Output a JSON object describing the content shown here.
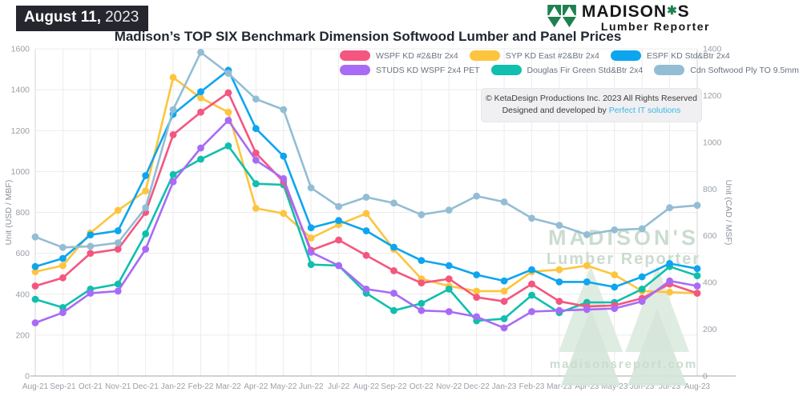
{
  "header": {
    "date_badge": {
      "date": "August 11,",
      "year": "2023"
    },
    "title": "Madison’s TOP SIX Benchmark Dimension Softwood Lumber and Panel Prices",
    "logo": {
      "brand_prefix": "MADISON",
      "brand_mark": "✱",
      "brand_suffix": "S",
      "tagline": "Lumber Reporter"
    }
  },
  "copyright": {
    "line1": "© KetaDesign Productions Inc. 2023 All Rights Reserved",
    "line2_prefix": "Designed and developed by ",
    "line2_link": "Perfect IT solutions"
  },
  "watermark": {
    "line1": "MADISON'S",
    "line2": "Lumber Reporter",
    "url": "madisonsreport.com"
  },
  "chart_data": {
    "type": "line",
    "title": "Madison’s TOP SIX Benchmark Dimension Softwood Lumber and Panel Prices",
    "categories": [
      "Aug-21",
      "Sep-21",
      "Oct-21",
      "Nov-21",
      "Dec-21",
      "Jan-22",
      "Feb-22",
      "Mar-22",
      "Apr-22",
      "May-22",
      "Jun-22",
      "Jul-22",
      "Aug-22",
      "Sep-22",
      "Oct-22",
      "Nov-22",
      "Dec-22",
      "Jan-23",
      "Feb-23",
      "Mar-23",
      "Apr-23",
      "May-23",
      "Jun-23",
      "Jul-23",
      "Aug-23"
    ],
    "series": [
      {
        "name": "WSPF KD #2&Btr 2x4",
        "color": "#f4567f",
        "axis": "left",
        "values": [
          440,
          480,
          600,
          620,
          800,
          1180,
          1290,
          1385,
          1090,
          950,
          615,
          665,
          590,
          515,
          455,
          475,
          385,
          365,
          450,
          365,
          340,
          345,
          380,
          450,
          405
        ]
      },
      {
        "name": "SYP KD East #2&Btr 2x4",
        "color": "#fdc53e",
        "axis": "left",
        "values": [
          510,
          540,
          700,
          810,
          905,
          1460,
          1360,
          1290,
          820,
          795,
          675,
          740,
          795,
          620,
          475,
          440,
          415,
          415,
          510,
          520,
          540,
          495,
          415,
          410,
          405
        ]
      },
      {
        "name": "ESPF KD Std&Btr 2x4",
        "color": "#0ea5ef",
        "axis": "left",
        "values": [
          535,
          575,
          690,
          710,
          980,
          1280,
          1390,
          1495,
          1210,
          1075,
          725,
          760,
          710,
          630,
          565,
          540,
          495,
          465,
          520,
          460,
          460,
          435,
          485,
          550,
          525
        ]
      },
      {
        "name": "STUDS KD WSPF 2x4 PET",
        "color": "#a86bf5",
        "axis": "left",
        "values": [
          260,
          310,
          405,
          415,
          620,
          950,
          1115,
          1250,
          1055,
          965,
          605,
          540,
          425,
          405,
          320,
          315,
          290,
          235,
          315,
          320,
          325,
          330,
          365,
          465,
          440
        ]
      },
      {
        "name": "Douglas Fir Green Std&Btr 2x4",
        "color": "#10bfad",
        "axis": "left",
        "values": [
          375,
          335,
          425,
          450,
          695,
          985,
          1060,
          1125,
          940,
          935,
          545,
          540,
          405,
          320,
          355,
          425,
          270,
          280,
          395,
          310,
          360,
          360,
          425,
          535,
          490
        ]
      },
      {
        "name": "Cdn Softwood Ply TO 9.5mm",
        "color": "#93bdd4",
        "axis": "right",
        "values": [
          595,
          550,
          555,
          570,
          720,
          1140,
          1385,
          1295,
          1185,
          1140,
          805,
          725,
          765,
          740,
          690,
          710,
          770,
          745,
          675,
          645,
          605,
          625,
          630,
          720,
          730
        ]
      }
    ],
    "left_axis": {
      "label": "Unit (USD / MBF)",
      "min": 0,
      "max": 1600,
      "step": 200
    },
    "right_axis": {
      "label": "Unit (CAD / MSF)",
      "min": 0,
      "max": 1400,
      "step": 200
    },
    "grid": true,
    "legend_position": "top-right"
  }
}
